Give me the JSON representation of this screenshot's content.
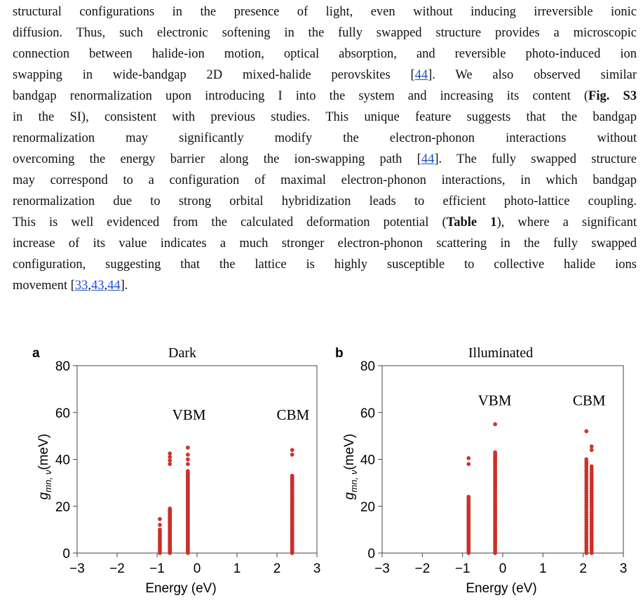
{
  "paragraph": {
    "lines": [
      "structural configurations in the presence of light, even without inducing irreversible ionic",
      "diffusion. Thus, such electronic softening in the fully swapped structure provides a microscopic",
      "connection between halide-ion motion, optical absorption, and reversible photo-induced ion",
      [
        "swapping in wide-bandgap 2D mixed-halide perovskites [",
        {
          "ref": "44"
        },
        "]. We also observed similar"
      ],
      [
        "bandgap renormalization upon introducing I into the system and increasing its content (",
        {
          "bold": "Fig. S3"
        }
      ],
      "in the SI), consistent with previous studies. This unique feature suggests that the bandgap",
      "renormalization may significantly modify the electron-phonon interactions without",
      [
        "overcoming the energy barrier along the ion-swapping path [",
        {
          "ref": "44"
        },
        "]. The fully swapped structure"
      ],
      "may correspond to a configuration of maximal electron-phonon interactions, in which bandgap",
      "renormalization due to strong orbital hybridization leads to efficient photo-lattice coupling.",
      [
        "This is well evidenced from the calculated deformation potential (",
        {
          "bold": "Table 1"
        },
        "), where a significant"
      ],
      "increase of its value indicates a much stronger electron-phonon scattering in the fully swapped",
      "configuration, suggesting that the lattice is highly susceptible to collective halide ions",
      [
        "movement [",
        {
          "ref": "33"
        },
        ",",
        {
          "ref": "43"
        },
        ",",
        {
          "ref": "44"
        },
        "]."
      ]
    ]
  },
  "panels": {
    "a": {
      "letter": "a",
      "title": "Dark",
      "ylabel_main": "g",
      "ylabel_sub": "mn, ν",
      "ylabel_unit": "(meV)",
      "xlabel": "Energy (eV)",
      "band_labels": [
        {
          "text": "VBM",
          "x": -0.2,
          "y": 57
        },
        {
          "text": "CBM",
          "x": 2.4,
          "y": 57
        }
      ]
    },
    "b": {
      "letter": "b",
      "title": "Illuminated",
      "ylabel_main": "g",
      "ylabel_sub": "mn, ν",
      "ylabel_unit": "(meV)",
      "xlabel": "Energy (eV)",
      "band_labels": [
        {
          "text": "VBM",
          "x": -0.2,
          "y": 63
        },
        {
          "text": "CBM",
          "x": 2.15,
          "y": 63
        }
      ]
    }
  },
  "chart_data": [
    {
      "type": "scatter",
      "title": "Dark",
      "xlabel": "Energy (eV)",
      "ylabel": "g_mn,ν (meV)",
      "xlim": [
        -3,
        3
      ],
      "ylim": [
        0,
        80
      ],
      "xticks": [
        -3,
        -2,
        -1,
        0,
        1,
        2,
        3
      ],
      "yticks": [
        0,
        20,
        40,
        60,
        80
      ],
      "color": "#d9322b",
      "columns": [
        {
          "x": -0.93,
          "y_range": [
            0,
            10
          ],
          "n": 14,
          "extra": [
            12,
            14.5
          ]
        },
        {
          "x": -0.68,
          "y_range": [
            0,
            19
          ],
          "n": 30,
          "extra": [
            38,
            39.5,
            41,
            42.5
          ]
        },
        {
          "x": -0.23,
          "y_range": [
            0,
            35
          ],
          "n": 50,
          "extra": [
            38,
            40,
            42,
            45
          ]
        },
        {
          "x": 2.38,
          "y_range": [
            0,
            33
          ],
          "n": 50,
          "extra": [
            42,
            44
          ]
        }
      ]
    },
    {
      "type": "scatter",
      "title": "Illuminated",
      "xlabel": "Energy (eV)",
      "ylabel": "g_mn,ν (meV)",
      "xlim": [
        -3,
        3
      ],
      "ylim": [
        0,
        80
      ],
      "xticks": [
        -3,
        -2,
        -1,
        0,
        1,
        2,
        3
      ],
      "yticks": [
        0,
        20,
        40,
        60,
        80
      ],
      "color": "#d9322b",
      "columns": [
        {
          "x": -0.85,
          "y_range": [
            0,
            24
          ],
          "n": 30,
          "extra": [
            38,
            40.5
          ]
        },
        {
          "x": -0.19,
          "y_range": [
            0,
            43
          ],
          "n": 55,
          "extra": [
            55
          ]
        },
        {
          "x": 2.08,
          "y_range": [
            0,
            40
          ],
          "n": 40,
          "extra": [
            52
          ]
        },
        {
          "x": 2.21,
          "y_range": [
            0,
            37
          ],
          "n": 40,
          "extra": [
            44,
            45.5
          ]
        }
      ]
    }
  ]
}
